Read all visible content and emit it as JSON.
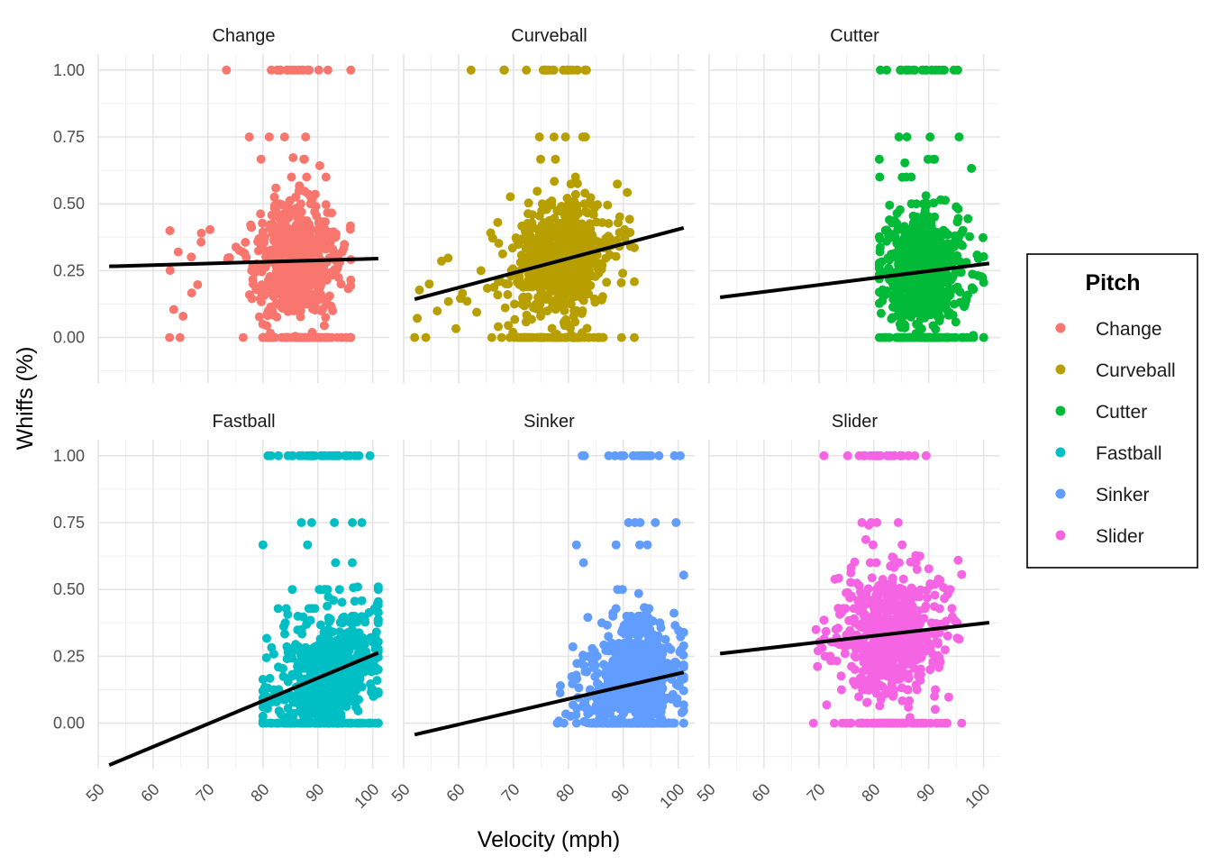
{
  "chart_data": {
    "type": "scatter",
    "facet_layout": "2x3",
    "xlabel": "Velocity (mph)",
    "ylabel": "Whiffs (%)",
    "xlim": [
      50,
      103
    ],
    "ylim": [
      -0.17,
      1.06
    ],
    "x_ticks": [
      "50",
      "60",
      "70",
      "80",
      "90",
      "100"
    ],
    "y_ticks": [
      "0.00",
      "0.25",
      "0.50",
      "0.75",
      "1.00"
    ],
    "grid": true,
    "legend": {
      "title": "Pitch",
      "position": "right"
    },
    "regression_line_color": "#000000",
    "series": [
      {
        "name": "Change",
        "color": "#F8766D",
        "x_range": [
          63,
          96
        ],
        "x_core": [
          80,
          92
        ],
        "trend": [
          [
            52,
            0.266
          ],
          [
            101,
            0.295
          ]
        ]
      },
      {
        "name": "Curveball",
        "color": "#B79F00",
        "x_range": [
          52,
          92
        ],
        "x_core": [
          71,
          86
        ],
        "trend": [
          [
            52,
            0.143
          ],
          [
            101,
            0.41
          ]
        ]
      },
      {
        "name": "Cutter",
        "color": "#00BA38",
        "x_range": [
          81,
          100
        ],
        "x_core": [
          83,
          95
        ],
        "trend": [
          [
            52,
            0.15
          ],
          [
            101,
            0.277
          ]
        ]
      },
      {
        "name": "Fastball",
        "color": "#00BFC4",
        "x_range": [
          80,
          101
        ],
        "x_core": [
          84,
          99
        ],
        "trend": [
          [
            52,
            -0.157
          ],
          [
            101,
            0.263
          ]
        ]
      },
      {
        "name": "Sinker",
        "color": "#619CFF",
        "x_range": [
          78,
          101
        ],
        "x_core": [
          85,
          99
        ],
        "trend": [
          [
            52,
            -0.043
          ],
          [
            101,
            0.19
          ]
        ]
      },
      {
        "name": "Slider",
        "color": "#F564E3",
        "x_range": [
          69,
          96
        ],
        "x_core": [
          76,
          90
        ],
        "trend": [
          [
            52,
            0.26
          ],
          [
            101,
            0.376
          ]
        ]
      }
    ]
  }
}
